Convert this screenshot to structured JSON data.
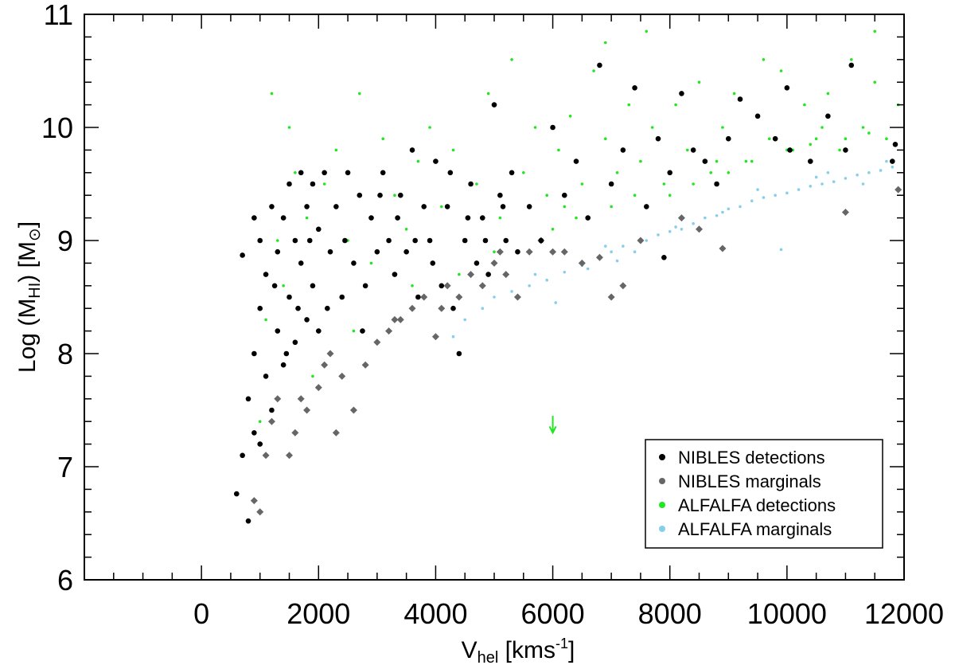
{
  "chart_data": {
    "type": "scatter",
    "xlabel": {
      "main": "V",
      "sub": "hel",
      "rest": " [kms",
      "sup": "-1",
      "close": "]"
    },
    "ylabel": {
      "main": "Log (M",
      "sub": "HI",
      "rest": ") [M",
      "symbol": "⊙",
      "close": "]"
    },
    "xlim": [
      -2000,
      12000
    ],
    "ylim": [
      6,
      11
    ],
    "x_ticks": [
      0,
      2000,
      4000,
      6000,
      8000,
      10000,
      12000
    ],
    "x_tick_labels": [
      "0",
      "2000",
      "4000",
      "6000",
      "8000",
      "10000",
      "12000"
    ],
    "y_ticks": [
      6,
      7,
      8,
      9,
      10,
      11
    ],
    "y_tick_labels": [
      "6",
      "7",
      "8",
      "9",
      "10",
      "11"
    ],
    "grid": false,
    "legend_position": "bottom-right",
    "series": [
      {
        "name": "ALFALFA marginals",
        "marker": "dot",
        "color": "#87CEEB",
        "points": [
          [
            4300,
            8.15
          ],
          [
            4500,
            8.3
          ],
          [
            4800,
            8.4
          ],
          [
            5000,
            8.5
          ],
          [
            5300,
            8.55
          ],
          [
            5600,
            8.6
          ],
          [
            5900,
            8.65
          ],
          [
            6050,
            8.45
          ],
          [
            6200,
            8.72
          ],
          [
            6500,
            8.78
          ],
          [
            6800,
            8.85
          ],
          [
            7000,
            8.9
          ],
          [
            7200,
            8.95
          ],
          [
            7400,
            8.9
          ],
          [
            7600,
            9.0
          ],
          [
            7800,
            9.05
          ],
          [
            8000,
            9.08
          ],
          [
            8200,
            9.1
          ],
          [
            8400,
            9.15
          ],
          [
            8600,
            9.2
          ],
          [
            8800,
            9.22
          ],
          [
            9000,
            9.28
          ],
          [
            9200,
            9.3
          ],
          [
            9400,
            9.35
          ],
          [
            9600,
            9.38
          ],
          [
            9800,
            9.4
          ],
          [
            10000,
            9.42
          ],
          [
            10200,
            9.45
          ],
          [
            10400,
            9.48
          ],
          [
            10600,
            9.5
          ],
          [
            10800,
            9.52
          ],
          [
            11000,
            9.55
          ],
          [
            11200,
            9.58
          ],
          [
            11400,
            9.6
          ],
          [
            11600,
            9.62
          ],
          [
            11800,
            9.65
          ],
          [
            9900,
            8.92
          ],
          [
            7100,
            8.82
          ],
          [
            6600,
            8.75
          ],
          [
            8900,
            9.25
          ],
          [
            10500,
            9.56
          ],
          [
            11300,
            9.5
          ],
          [
            5700,
            8.7
          ],
          [
            6900,
            8.95
          ],
          [
            8100,
            9.12
          ],
          [
            9500,
            9.45
          ],
          [
            10700,
            9.6
          ],
          [
            11700,
            9.7
          ]
        ]
      },
      {
        "name": "ALFALFA detections",
        "marker": "dot",
        "color": "#22E622",
        "points": [
          [
            1000,
            7.4
          ],
          [
            1100,
            8.3
          ],
          [
            1200,
            9.3
          ],
          [
            1300,
            9.0
          ],
          [
            1500,
            10.0
          ],
          [
            1600,
            9.6
          ],
          [
            1800,
            9.2
          ],
          [
            1900,
            7.8
          ],
          [
            2100,
            9.5
          ],
          [
            2300,
            9.8
          ],
          [
            2500,
            9.0
          ],
          [
            2700,
            10.3
          ],
          [
            2900,
            8.8
          ],
          [
            3100,
            9.9
          ],
          [
            3300,
            9.4
          ],
          [
            3500,
            9.1
          ],
          [
            3700,
            9.7
          ],
          [
            3900,
            10.0
          ],
          [
            4100,
            9.3
          ],
          [
            4300,
            9.8
          ],
          [
            4500,
            9.0
          ],
          [
            4700,
            9.5
          ],
          [
            4900,
            10.3
          ],
          [
            5100,
            9.2
          ],
          [
            5300,
            10.6
          ],
          [
            5500,
            9.6
          ],
          [
            5700,
            10.0
          ],
          [
            5900,
            9.4
          ],
          [
            6100,
            9.8
          ],
          [
            6300,
            10.1
          ],
          [
            6500,
            9.5
          ],
          [
            6700,
            10.5
          ],
          [
            6900,
            9.9
          ],
          [
            7100,
            9.6
          ],
          [
            7300,
            10.2
          ],
          [
            7500,
            9.7
          ],
          [
            7700,
            10.0
          ],
          [
            7900,
            9.5
          ],
          [
            8100,
            10.2
          ],
          [
            8300,
            9.8
          ],
          [
            8500,
            10.4
          ],
          [
            8700,
            9.6
          ],
          [
            8900,
            10.0
          ],
          [
            9100,
            10.3
          ],
          [
            9300,
            9.7
          ],
          [
            9500,
            10.1
          ],
          [
            9700,
            9.9
          ],
          [
            9900,
            10.5
          ],
          [
            10100,
            9.8
          ],
          [
            10300,
            10.2
          ],
          [
            10500,
            9.9
          ],
          [
            10700,
            10.3
          ],
          [
            10900,
            9.8
          ],
          [
            11100,
            10.6
          ],
          [
            11300,
            10.0
          ],
          [
            11500,
            10.4
          ],
          [
            11700,
            9.9
          ],
          [
            11900,
            10.2
          ],
          [
            7600,
            10.85
          ],
          [
            11500,
            10.85
          ],
          [
            6900,
            10.75
          ],
          [
            9600,
            10.6
          ],
          [
            5000,
            8.9
          ],
          [
            6000,
            9.1
          ],
          [
            7000,
            9.3
          ],
          [
            8000,
            9.4
          ],
          [
            9000,
            9.6
          ],
          [
            10000,
            9.8
          ],
          [
            11000,
            9.9
          ],
          [
            6400,
            9.2
          ],
          [
            7400,
            9.4
          ],
          [
            8400,
            9.5
          ],
          [
            9400,
            9.7
          ],
          [
            10400,
            9.85
          ],
          [
            11400,
            9.95
          ],
          [
            1200,
            10.3
          ],
          [
            1400,
            8.6
          ],
          [
            2600,
            8.2
          ],
          [
            3600,
            8.6
          ],
          [
            4400,
            8.7
          ],
          [
            6200,
            9.3
          ],
          [
            8800,
            9.7
          ],
          [
            10600,
            10.0
          ]
        ]
      },
      {
        "name": "NIBLES marginals",
        "marker": "diamond",
        "color": "#666666",
        "points": [
          [
            900,
            6.7
          ],
          [
            1000,
            6.6
          ],
          [
            1100,
            7.1
          ],
          [
            1200,
            7.4
          ],
          [
            1300,
            7.6
          ],
          [
            1500,
            7.1
          ],
          [
            1600,
            7.3
          ],
          [
            1800,
            7.5
          ],
          [
            2000,
            7.7
          ],
          [
            2100,
            7.9
          ],
          [
            2200,
            8.0
          ],
          [
            2400,
            7.8
          ],
          [
            2600,
            7.5
          ],
          [
            2800,
            7.9
          ],
          [
            3000,
            8.1
          ],
          [
            3200,
            8.2
          ],
          [
            3400,
            8.3
          ],
          [
            3600,
            8.4
          ],
          [
            3800,
            8.5
          ],
          [
            4000,
            8.15
          ],
          [
            4200,
            8.6
          ],
          [
            4400,
            8.5
          ],
          [
            4600,
            8.7
          ],
          [
            4800,
            8.6
          ],
          [
            5000,
            8.8
          ],
          [
            5200,
            8.7
          ],
          [
            5400,
            8.5
          ],
          [
            5600,
            8.9
          ],
          [
            5800,
            9.0
          ],
          [
            6000,
            8.9
          ],
          [
            6200,
            8.9
          ],
          [
            6500,
            8.8
          ],
          [
            6800,
            8.85
          ],
          [
            7000,
            8.5
          ],
          [
            7200,
            8.6
          ],
          [
            7500,
            9.0
          ],
          [
            8200,
            9.2
          ],
          [
            8500,
            9.1
          ],
          [
            8900,
            8.93
          ],
          [
            11000,
            9.25
          ],
          [
            11900,
            9.45
          ],
          [
            1700,
            7.6
          ],
          [
            2300,
            7.3
          ],
          [
            3300,
            8.3
          ],
          [
            4100,
            8.4
          ],
          [
            5100,
            8.9
          ]
        ]
      },
      {
        "name": "NIBLES detections",
        "marker": "dot",
        "color": "#000000",
        "points": [
          [
            600,
            6.76
          ],
          [
            700,
            7.1
          ],
          [
            700,
            8.87
          ],
          [
            800,
            7.6
          ],
          [
            800,
            6.52
          ],
          [
            900,
            7.3
          ],
          [
            900,
            8.0
          ],
          [
            900,
            9.2
          ],
          [
            1000,
            7.2
          ],
          [
            1000,
            8.4
          ],
          [
            1000,
            9.0
          ],
          [
            1100,
            7.8
          ],
          [
            1100,
            8.7
          ],
          [
            1200,
            7.5
          ],
          [
            1200,
            9.3
          ],
          [
            1300,
            8.2
          ],
          [
            1300,
            8.9
          ],
          [
            1400,
            7.9
          ],
          [
            1400,
            9.2
          ],
          [
            1500,
            8.5
          ],
          [
            1500,
            9.5
          ],
          [
            1600,
            8.1
          ],
          [
            1600,
            9.0
          ],
          [
            1700,
            8.8
          ],
          [
            1700,
            9.6
          ],
          [
            1800,
            8.3
          ],
          [
            1800,
            9.3
          ],
          [
            1900,
            8.6
          ],
          [
            1900,
            9.5
          ],
          [
            2000,
            8.2
          ],
          [
            2000,
            9.1
          ],
          [
            2100,
            9.6
          ],
          [
            2200,
            8.9
          ],
          [
            2300,
            9.3
          ],
          [
            2400,
            8.5
          ],
          [
            2500,
            9.6
          ],
          [
            2600,
            8.8
          ],
          [
            2700,
            9.4
          ],
          [
            2800,
            8.6
          ],
          [
            2900,
            9.2
          ],
          [
            3000,
            8.9
          ],
          [
            3100,
            9.6
          ],
          [
            3200,
            9.0
          ],
          [
            3300,
            8.7
          ],
          [
            3400,
            9.4
          ],
          [
            3500,
            8.9
          ],
          [
            3600,
            9.8
          ],
          [
            3700,
            8.5
          ],
          [
            3800,
            9.3
          ],
          [
            3900,
            9.0
          ],
          [
            4000,
            9.7
          ],
          [
            4100,
            8.6
          ],
          [
            4200,
            9.3
          ],
          [
            4300,
            8.4
          ],
          [
            4400,
            8.0
          ],
          [
            4500,
            9.0
          ],
          [
            4600,
            9.5
          ],
          [
            4700,
            8.8
          ],
          [
            4800,
            9.2
          ],
          [
            4900,
            8.7
          ],
          [
            5000,
            10.2
          ],
          [
            5100,
            9.4
          ],
          [
            5200,
            9.0
          ],
          [
            5300,
            9.6
          ],
          [
            5400,
            8.9
          ],
          [
            5600,
            9.3
          ],
          [
            5800,
            9.0
          ],
          [
            6000,
            10.0
          ],
          [
            6200,
            9.4
          ],
          [
            6400,
            9.7
          ],
          [
            6600,
            9.2
          ],
          [
            6800,
            10.55
          ],
          [
            7000,
            9.5
          ],
          [
            7200,
            9.8
          ],
          [
            7400,
            10.35
          ],
          [
            7600,
            9.3
          ],
          [
            7800,
            9.9
          ],
          [
            7900,
            8.85
          ],
          [
            8000,
            9.6
          ],
          [
            8200,
            10.3
          ],
          [
            8400,
            9.8
          ],
          [
            8600,
            9.7
          ],
          [
            8800,
            9.5
          ],
          [
            9000,
            9.9
          ],
          [
            9200,
            10.25
          ],
          [
            9500,
            10.1
          ],
          [
            9800,
            9.9
          ],
          [
            10000,
            10.35
          ],
          [
            10050,
            9.8
          ],
          [
            10400,
            9.7
          ],
          [
            10700,
            10.1
          ],
          [
            11000,
            9.8
          ],
          [
            11100,
            10.55
          ],
          [
            11800,
            9.7
          ],
          [
            11850,
            9.85
          ],
          [
            1250,
            8.6
          ],
          [
            1450,
            8.0
          ],
          [
            1650,
            8.4
          ],
          [
            1850,
            9.0
          ],
          [
            2150,
            8.4
          ],
          [
            2450,
            9.0
          ],
          [
            2750,
            8.2
          ],
          [
            3050,
            9.4
          ],
          [
            3350,
            9.2
          ],
          [
            3650,
            9.0
          ],
          [
            3950,
            8.8
          ],
          [
            4250,
            9.6
          ],
          [
            4550,
            9.2
          ],
          [
            4850,
            9.0
          ],
          [
            5150,
            9.3
          ]
        ]
      }
    ],
    "legend": [
      "NIBLES detections",
      "NIBLES marginals",
      "ALFALFA detections",
      "ALFALFA marginals"
    ],
    "annotations": [
      {
        "type": "arrow-down",
        "x": 6000,
        "y_top": 7.45,
        "y_bottom": 7.3,
        "color": "#22E622"
      }
    ]
  }
}
